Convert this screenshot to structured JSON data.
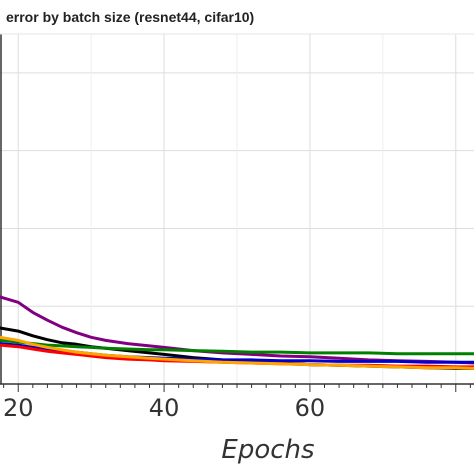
{
  "chart_data": {
    "type": "line",
    "title": "error by batch size (resnet44, cifar10)",
    "xlabel": "Epochs",
    "ylabel": "",
    "xlim": [
      17.5,
      82.5
    ],
    "ylim": [
      0,
      0.45
    ],
    "x_ticks": [
      20,
      40,
      60
    ],
    "x_tick_labels": [
      "20",
      "40",
      "60"
    ],
    "grid": true,
    "series": [
      {
        "color": "#800080",
        "x": [
          17.5,
          20,
          22,
          24,
          26,
          28,
          30,
          32,
          35,
          38,
          40,
          44,
          48,
          52,
          56,
          60,
          64,
          68,
          72,
          76,
          80,
          82.5
        ],
        "y": [
          0.112,
          0.105,
          0.092,
          0.082,
          0.073,
          0.066,
          0.06,
          0.056,
          0.052,
          0.049,
          0.047,
          0.043,
          0.04,
          0.038,
          0.036,
          0.035,
          0.033,
          0.031,
          0.03,
          0.029,
          0.028,
          0.027
        ]
      },
      {
        "color": "#000000",
        "x": [
          17.5,
          20,
          22,
          24,
          26,
          28,
          30,
          32,
          35,
          38,
          40,
          44,
          48,
          52,
          56,
          60,
          64,
          68,
          72,
          76,
          80,
          82.5
        ],
        "y": [
          0.072,
          0.068,
          0.062,
          0.057,
          0.053,
          0.051,
          0.048,
          0.046,
          0.043,
          0.04,
          0.038,
          0.034,
          0.031,
          0.029,
          0.027,
          0.025,
          0.024,
          0.023,
          0.022,
          0.021,
          0.02,
          0.02
        ]
      },
      {
        "color": "#008000",
        "x": [
          17.5,
          20,
          22,
          24,
          26,
          28,
          30,
          32,
          35,
          38,
          40,
          44,
          48,
          52,
          56,
          60,
          64,
          68,
          72,
          76,
          80,
          82.5
        ],
        "y": [
          0.056,
          0.054,
          0.052,
          0.05,
          0.049,
          0.048,
          0.047,
          0.046,
          0.045,
          0.044,
          0.044,
          0.043,
          0.042,
          0.041,
          0.041,
          0.04,
          0.04,
          0.04,
          0.039,
          0.039,
          0.039,
          0.039
        ]
      },
      {
        "color": "#0000cc",
        "x": [
          17.5,
          20,
          22,
          24,
          26,
          28,
          30,
          32,
          35,
          38,
          40,
          44,
          48,
          52,
          56,
          60,
          64,
          68,
          72,
          76,
          80,
          82.5
        ],
        "y": [
          0.052,
          0.05,
          0.047,
          0.045,
          0.043,
          0.041,
          0.039,
          0.037,
          0.035,
          0.034,
          0.033,
          0.032,
          0.031,
          0.031,
          0.03,
          0.03,
          0.029,
          0.029,
          0.029,
          0.028,
          0.028,
          0.028
        ]
      },
      {
        "color": "#ff0000",
        "x": [
          17.5,
          20,
          22,
          24,
          26,
          28,
          30,
          32,
          35,
          38,
          40,
          44,
          48,
          52,
          56,
          60,
          64,
          68,
          72,
          76,
          80,
          82.5
        ],
        "y": [
          0.05,
          0.048,
          0.045,
          0.042,
          0.04,
          0.038,
          0.036,
          0.034,
          0.032,
          0.031,
          0.03,
          0.029,
          0.028,
          0.027,
          0.026,
          0.025,
          0.024,
          0.024,
          0.023,
          0.023,
          0.022,
          0.022
        ]
      },
      {
        "color": "#ffa500",
        "x": [
          17.5,
          20,
          22,
          24,
          26,
          28,
          30,
          32,
          35,
          38,
          40,
          44,
          48,
          52,
          56,
          60,
          64,
          68,
          72,
          76,
          80,
          82.5
        ],
        "y": [
          0.06,
          0.056,
          0.051,
          0.047,
          0.044,
          0.041,
          0.039,
          0.037,
          0.035,
          0.033,
          0.032,
          0.03,
          0.028,
          0.027,
          0.026,
          0.025,
          0.024,
          0.023,
          0.022,
          0.021,
          0.021,
          0.02
        ]
      }
    ]
  }
}
